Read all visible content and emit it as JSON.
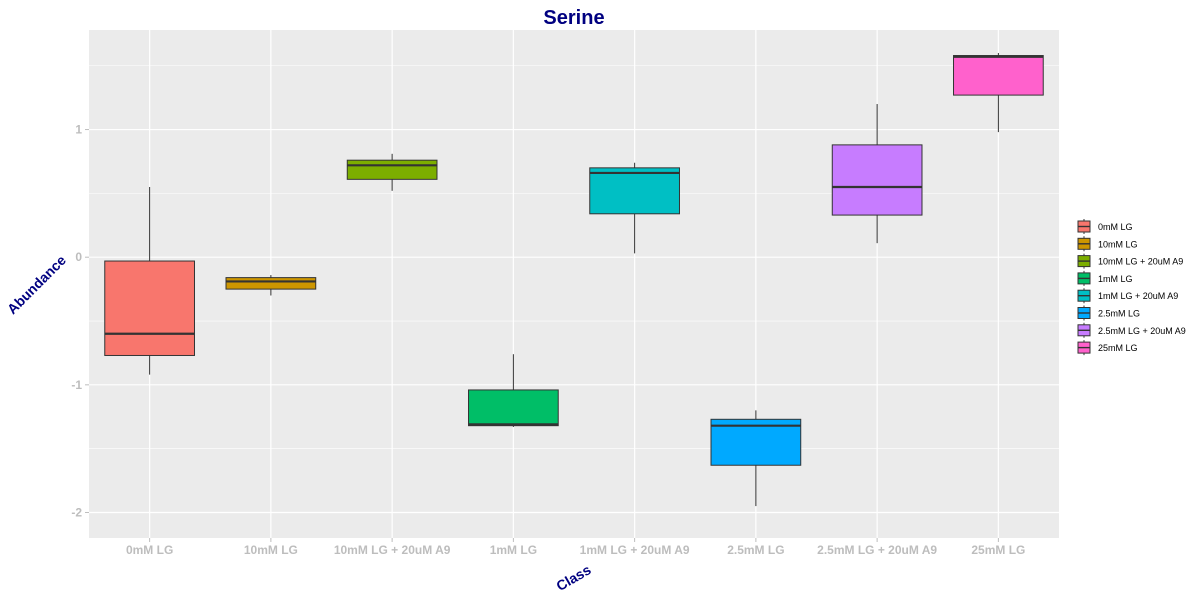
{
  "chart_data": {
    "type": "boxplot",
    "title": "Serine",
    "xlabel": "Class",
    "ylabel": "Abundance",
    "ylim": [
      -2.2,
      1.78
    ],
    "yticks": [
      -2,
      -1,
      0,
      1
    ],
    "ytick_labels": [
      "-2",
      "-1",
      "0",
      "1"
    ],
    "grid": true,
    "legend_position": "right",
    "categories": [
      "0mM LG",
      "10mM LG",
      "10mM LG + 20uM A9",
      "1mM LG",
      "1mM LG + 20uM A9",
      "2.5mM LG",
      "2.5mM LG + 20uM A9",
      "25mM LG"
    ],
    "colors": [
      "#F8766D",
      "#CD9600",
      "#7CAE00",
      "#00BE67",
      "#00BFC4",
      "#00A9FF",
      "#C77CFF",
      "#FF61CC"
    ],
    "boxes": [
      {
        "whisker_low": -0.92,
        "q1": -0.77,
        "median": -0.6,
        "q3": -0.03,
        "whisker_high": 0.55
      },
      {
        "whisker_low": -0.3,
        "q1": -0.25,
        "median": -0.19,
        "q3": -0.16,
        "whisker_high": -0.14
      },
      {
        "whisker_low": 0.52,
        "q1": 0.61,
        "median": 0.72,
        "q3": 0.76,
        "whisker_high": 0.81
      },
      {
        "whisker_low": -1.33,
        "q1": -1.32,
        "median": -1.31,
        "q3": -1.04,
        "whisker_high": -0.76
      },
      {
        "whisker_low": 0.03,
        "q1": 0.34,
        "median": 0.66,
        "q3": 0.7,
        "whisker_high": 0.74
      },
      {
        "whisker_low": -1.95,
        "q1": -1.63,
        "median": -1.32,
        "q3": -1.27,
        "whisker_high": -1.2
      },
      {
        "whisker_low": 0.11,
        "q1": 0.33,
        "median": 0.55,
        "q3": 0.88,
        "whisker_high": 1.2
      },
      {
        "whisker_low": 0.98,
        "q1": 1.27,
        "median": 1.57,
        "q3": 1.58,
        "whisker_high": 1.6
      }
    ]
  }
}
